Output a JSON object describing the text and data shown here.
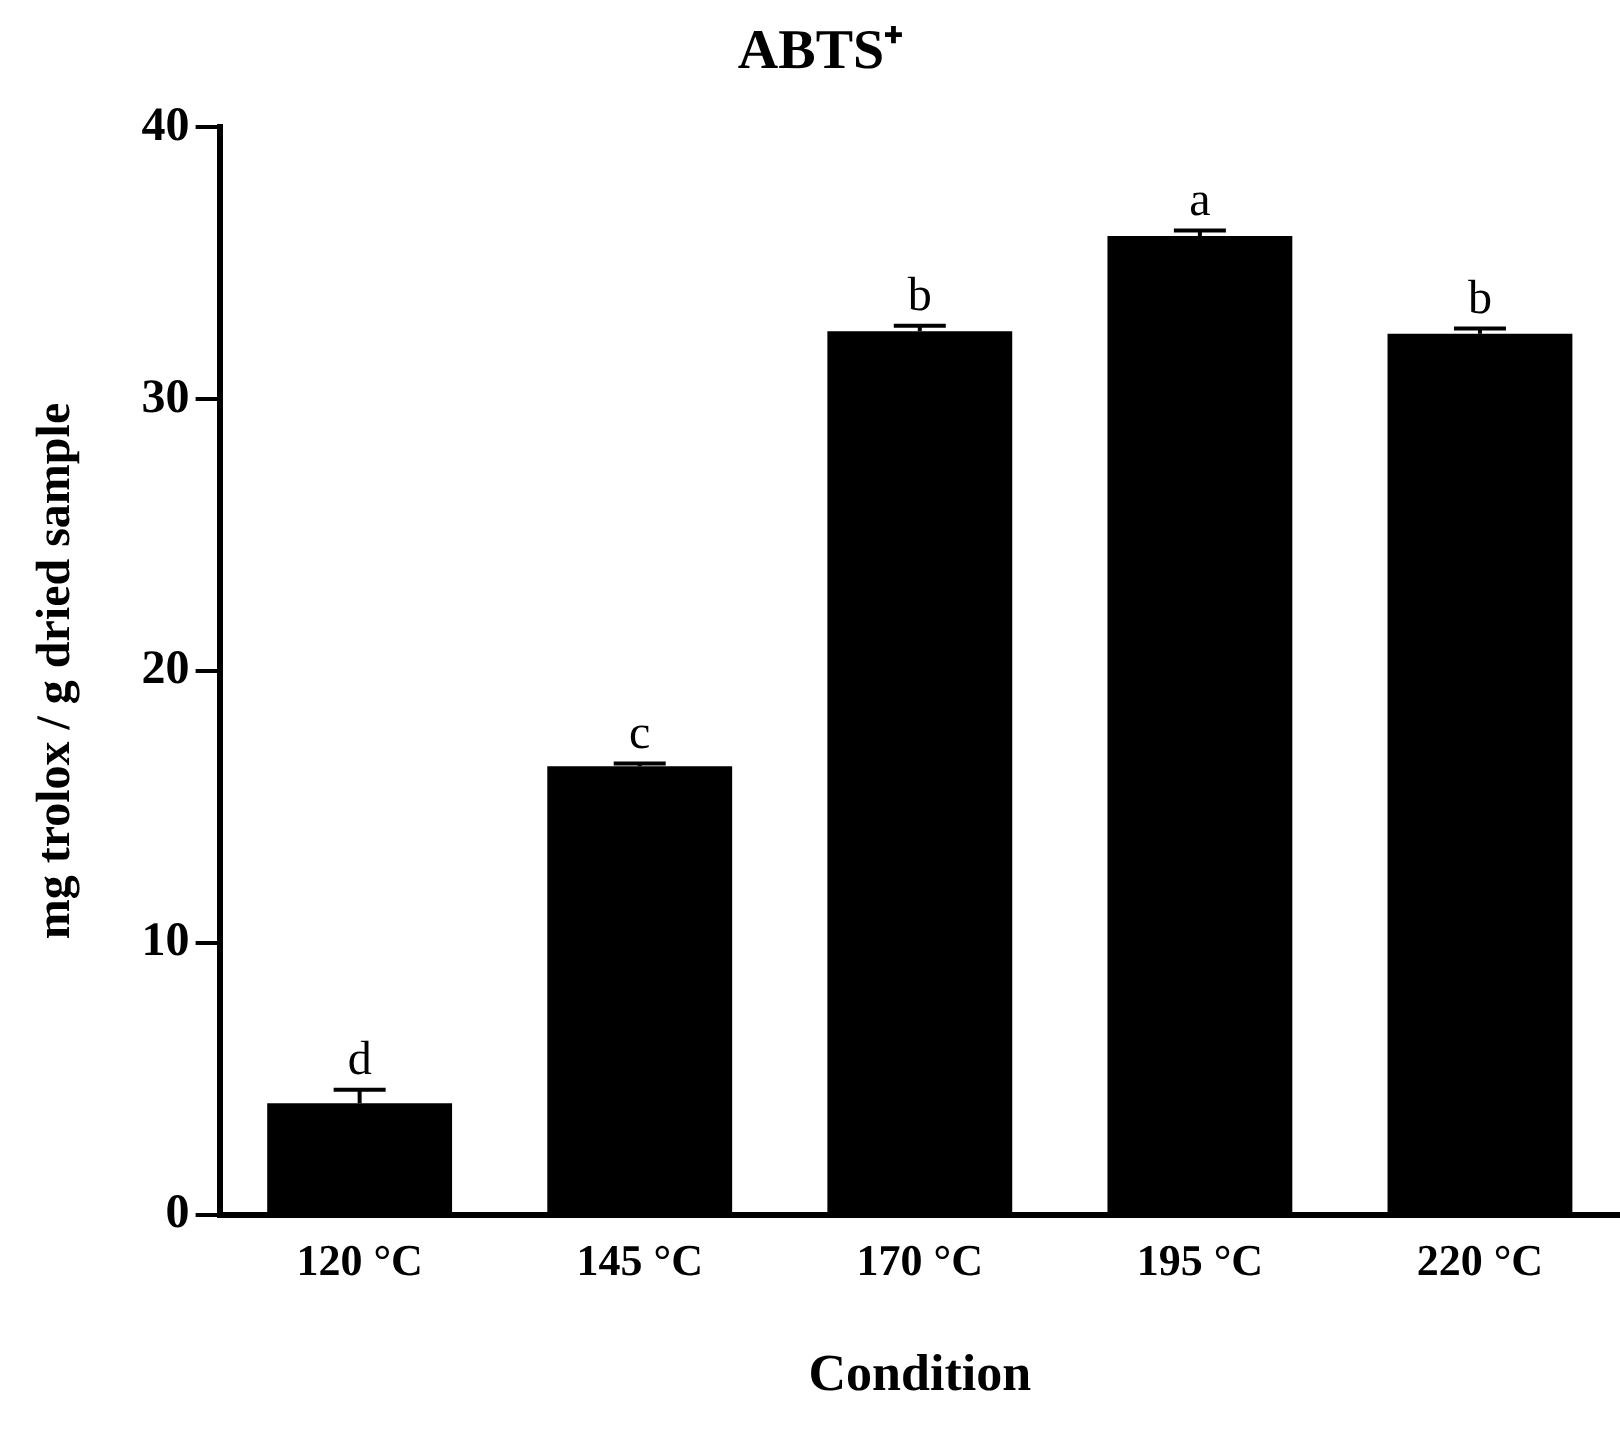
{
  "chart_data": {
    "type": "bar",
    "title": "ABTS⁺",
    "xlabel": "Condition",
    "ylabel": "mg trolox / g dried sample",
    "categories": [
      "120 °C",
      "145 °C",
      "170 °C",
      "195 °C",
      "220 °C"
    ],
    "values": [
      4.1,
      16.5,
      32.5,
      36.0,
      32.4
    ],
    "errors": [
      0.5,
      0.1,
      0.2,
      0.2,
      0.2
    ],
    "color": "#000000",
    "ylim": [
      0,
      40
    ],
    "yticks": [
      0,
      10,
      20,
      30,
      40
    ],
    "grid": false,
    "annotations": [
      {
        "text": "d",
        "x": "120 °C",
        "y": 4.6
      },
      {
        "text": "c",
        "x": "145 °C",
        "y": 16.6
      },
      {
        "text": "b",
        "x": "170 °C",
        "y": 32.7
      },
      {
        "text": "a",
        "x": "195 °C",
        "y": 36.2
      },
      {
        "text": "b",
        "x": "220 °C",
        "y": 32.6
      }
    ]
  }
}
